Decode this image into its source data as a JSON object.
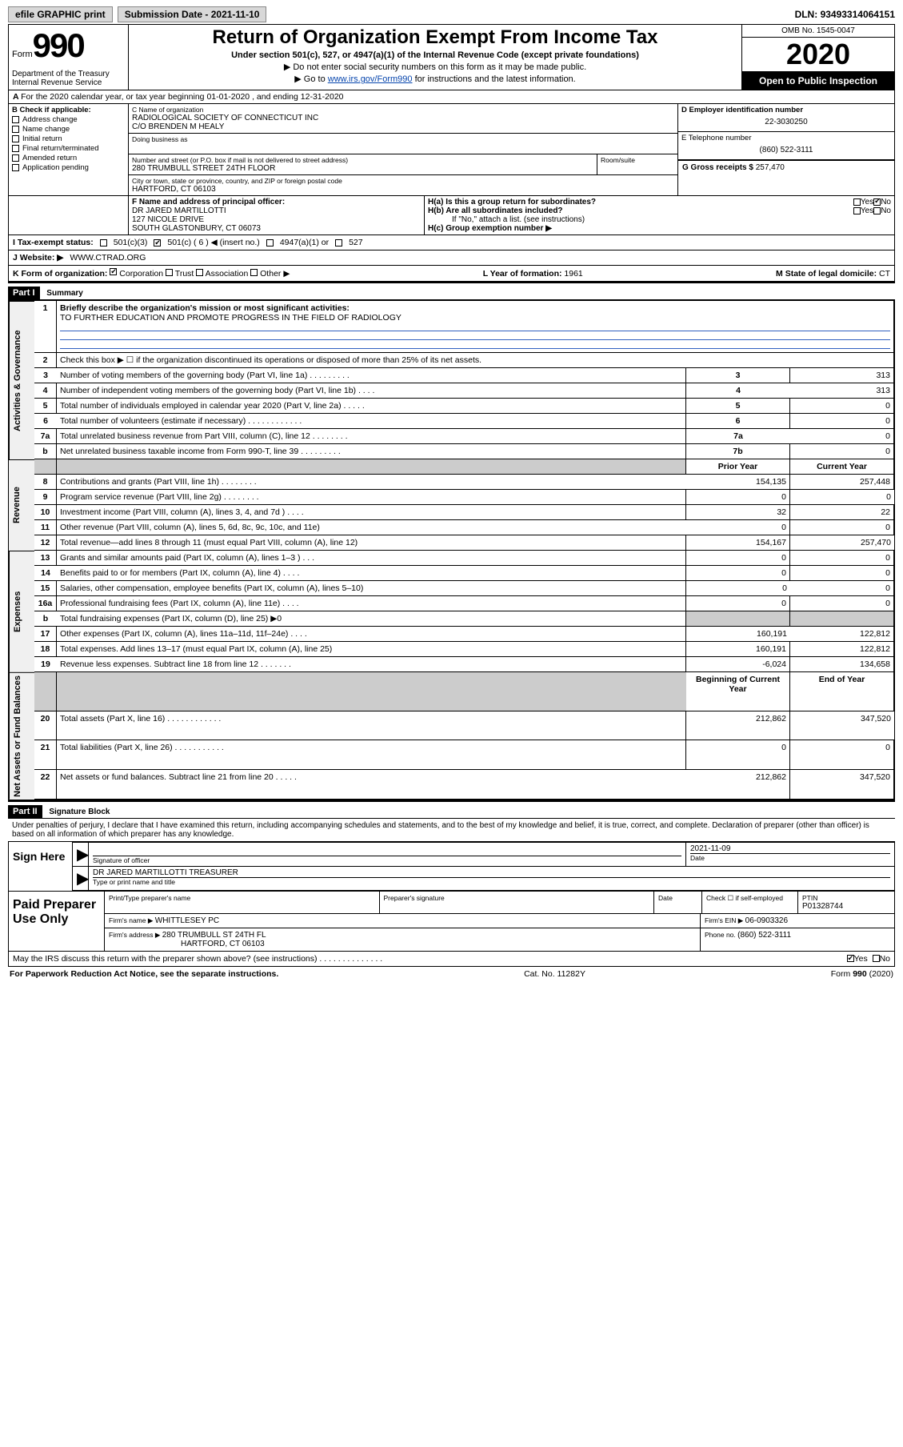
{
  "topbar": {
    "efile": "efile GRAPHIC print",
    "subdate_lbl": "Submission Date - ",
    "subdate": "2021-11-10",
    "dln_lbl": "DLN: ",
    "dln": "93493314064151"
  },
  "header": {
    "form_word": "Form",
    "form_num": "990",
    "dept": "Department of the Treasury\nInternal Revenue Service",
    "title": "Return of Organization Exempt From Income Tax",
    "sub": "Under section 501(c), 527, or 4947(a)(1) of the Internal Revenue Code (except private foundations)",
    "note1": "Do not enter social security numbers on this form as it may be made public.",
    "note2_a": "Go to ",
    "note2_link": "www.irs.gov/Form990",
    "note2_b": " for instructions and the latest information.",
    "omb": "OMB No. 1545-0047",
    "year": "2020",
    "open": "Open to Public Inspection"
  },
  "period": {
    "line": "For the 2020 calendar year, or tax year beginning 01-01-2020   , and ending 12-31-2020"
  },
  "B": {
    "hdr": "B Check if applicable:",
    "items": [
      "Address change",
      "Name change",
      "Initial return",
      "Final return/terminated",
      "Amended return",
      "Application pending"
    ]
  },
  "C": {
    "name_lbl": "C Name of organization",
    "name": "RADIOLOGICAL SOCIETY OF CONNECTICUT INC",
    "co": "C/O BRENDEN M HEALY",
    "dba_lbl": "Doing business as",
    "addr_lbl": "Number and street (or P.O. box if mail is not delivered to street address)",
    "room_lbl": "Room/suite",
    "addr": "280 TRUMBULL STREET 24TH FLOOR",
    "city_lbl": "City or town, state or province, country, and ZIP or foreign postal code",
    "city": "HARTFORD, CT  06103"
  },
  "D": {
    "lbl": "D Employer identification number",
    "val": "22-3030250"
  },
  "E": {
    "lbl": "E Telephone number",
    "val": "(860) 522-3111"
  },
  "G": {
    "lbl": "G Gross receipts $ ",
    "val": "257,470"
  },
  "F": {
    "lbl": "F  Name and address of principal officer:",
    "name": "DR JARED MARTILLOTTI",
    "addr1": "127 NICOLE DRIVE",
    "addr2": "SOUTH GLASTONBURY, CT  06073"
  },
  "H": {
    "a": "H(a)  Is this a group return for subordinates?",
    "b": "H(b)  Are all subordinates included?",
    "b_note": "If \"No,\" attach a list. (see instructions)",
    "c": "H(c)  Group exemption number ▶",
    "yes": "Yes",
    "no": "No"
  },
  "I": {
    "lbl": "I  Tax-exempt status:",
    "opts": [
      "501(c)(3)",
      "501(c) ( 6 ) ◀ (insert no.)",
      "4947(a)(1) or",
      "527"
    ]
  },
  "J": {
    "lbl": "J   Website: ▶",
    "val": "WWW.CTRAD.ORG"
  },
  "K": {
    "lbl": "K Form of organization:",
    "opts": [
      "Corporation",
      "Trust",
      "Association",
      "Other ▶"
    ],
    "L_lbl": "L Year of formation: ",
    "L_val": "1961",
    "M_lbl": "M State of legal domicile: ",
    "M_val": "CT"
  },
  "partI": {
    "tag": "Part I",
    "title": "Summary"
  },
  "summary": {
    "tabs": [
      "Activities & Governance",
      "Revenue",
      "Expenses",
      "Net Assets or Fund Balances"
    ],
    "q1_lbl": "1",
    "q1": "Briefly describe the organization's mission or most significant activities:",
    "q1_val": "TO FURTHER EDUCATION AND PROMOTE PROGRESS IN THE FIELD OF RADIOLOGY",
    "q2_lbl": "2",
    "q2": "Check this box ▶ ☐  if the organization discontinued its operations or disposed of more than 25% of its net assets.",
    "rows_ag": [
      {
        "n": "3",
        "d": "Number of voting members of the governing body (Part VI, line 1a)  .  .  .  .  .  .  .  .  .",
        "c": "3",
        "v": "313"
      },
      {
        "n": "4",
        "d": "Number of independent voting members of the governing body (Part VI, line 1b)  .  .  .  .",
        "c": "4",
        "v": "313"
      },
      {
        "n": "5",
        "d": "Total number of individuals employed in calendar year 2020 (Part V, line 2a)  .  .  .  .  .",
        "c": "5",
        "v": "0"
      },
      {
        "n": "6",
        "d": "Total number of volunteers (estimate if necessary)  .  .  .  .  .  .  .  .  .  .  .  .",
        "c": "6",
        "v": "0"
      },
      {
        "n": "7a",
        "d": "Total unrelated business revenue from Part VIII, column (C), line 12  .  .  .  .  .  .  .  .",
        "c": "7a",
        "v": "0"
      },
      {
        "n": "b",
        "d": "Net unrelated business taxable income from Form 990-T, line 39  .  .  .  .  .  .  .  .  .",
        "c": "7b",
        "v": "0"
      }
    ],
    "col_prior": "Prior Year",
    "col_curr": "Current Year",
    "rows_rev": [
      {
        "n": "8",
        "d": "Contributions and grants (Part VIII, line 1h)  .  .  .  .  .  .  .  .",
        "p": "154,135",
        "c": "257,448"
      },
      {
        "n": "9",
        "d": "Program service revenue (Part VIII, line 2g)  .  .  .  .  .  .  .  .",
        "p": "0",
        "c": "0"
      },
      {
        "n": "10",
        "d": "Investment income (Part VIII, column (A), lines 3, 4, and 7d )  .  .  .  .",
        "p": "32",
        "c": "22"
      },
      {
        "n": "11",
        "d": "Other revenue (Part VIII, column (A), lines 5, 6d, 8c, 9c, 10c, and 11e)",
        "p": "0",
        "c": "0"
      },
      {
        "n": "12",
        "d": "Total revenue—add lines 8 through 11 (must equal Part VIII, column (A), line 12)",
        "p": "154,167",
        "c": "257,470"
      }
    ],
    "rows_exp": [
      {
        "n": "13",
        "d": "Grants and similar amounts paid (Part IX, column (A), lines 1–3 )  .  .  .",
        "p": "0",
        "c": "0"
      },
      {
        "n": "14",
        "d": "Benefits paid to or for members (Part IX, column (A), line 4)  .  .  .  .",
        "p": "0",
        "c": "0"
      },
      {
        "n": "15",
        "d": "Salaries, other compensation, employee benefits (Part IX, column (A), lines 5–10)",
        "p": "0",
        "c": "0"
      },
      {
        "n": "16a",
        "d": "Professional fundraising fees (Part IX, column (A), line 11e)  .  .  .  .",
        "p": "0",
        "c": "0"
      },
      {
        "n": "b",
        "d": "Total fundraising expenses (Part IX, column (D), line 25) ▶0",
        "p": "",
        "c": "",
        "shade": true
      },
      {
        "n": "17",
        "d": "Other expenses (Part IX, column (A), lines 11a–11d, 11f–24e)  .  .  .  .",
        "p": "160,191",
        "c": "122,812"
      },
      {
        "n": "18",
        "d": "Total expenses. Add lines 13–17 (must equal Part IX, column (A), line 25)",
        "p": "160,191",
        "c": "122,812"
      },
      {
        "n": "19",
        "d": "Revenue less expenses. Subtract line 18 from line 12  .  .  .  .  .  .  .",
        "p": "-6,024",
        "c": "134,658"
      }
    ],
    "col_begin": "Beginning of Current Year",
    "col_end": "End of Year",
    "rows_net": [
      {
        "n": "20",
        "d": "Total assets (Part X, line 16)  .  .  .  .  .  .  .  .  .  .  .  .",
        "p": "212,862",
        "c": "347,520"
      },
      {
        "n": "21",
        "d": "Total liabilities (Part X, line 26)  .  .  .  .  .  .  .  .  .  .  .",
        "p": "0",
        "c": "0"
      },
      {
        "n": "22",
        "d": "Net assets or fund balances. Subtract line 21 from line 20  .  .  .  .  .",
        "p": "212,862",
        "c": "347,520"
      }
    ]
  },
  "partII": {
    "tag": "Part II",
    "title": "Signature Block"
  },
  "sig": {
    "perjury": "Under penalties of perjury, I declare that I have examined this return, including accompanying schedules and statements, and to the best of my knowledge and belief, it is true, correct, and complete. Declaration of preparer (other than officer) is based on all information of which preparer has any knowledge.",
    "sign_here": "Sign Here",
    "sig_officer": "Signature of officer",
    "date_lbl": "Date",
    "date_val": "2021-11-09",
    "officer": "DR JARED MARTILLOTTI  TREASURER",
    "type_name": "Type or print name and title",
    "paid": "Paid Preparer Use Only",
    "p_name_lbl": "Print/Type preparer's name",
    "p_sig_lbl": "Preparer's signature",
    "p_date_lbl": "Date",
    "p_check": "Check ☐ if self-employed",
    "ptin_lbl": "PTIN",
    "ptin": "P01328744",
    "firm_name_lbl": "Firm's name    ▶ ",
    "firm_name": "WHITTLESEY PC",
    "firm_ein_lbl": "Firm's EIN ▶ ",
    "firm_ein": "06-0903326",
    "firm_addr_lbl": "Firm's address ▶ ",
    "firm_addr1": "280 TRUMBULL ST 24TH FL",
    "firm_addr2": "HARTFORD, CT  06103",
    "phone_lbl": "Phone no. ",
    "phone": "(860) 522-3111",
    "discuss": "May the IRS discuss this return with the preparer shown above? (see instructions)  .  .  .  .  .  .  .  .  .  .  .  .  .  .",
    "yes": "Yes",
    "no": "No"
  },
  "foot": {
    "pra": "For Paperwork Reduction Act Notice, see the separate instructions.",
    "cat": "Cat. No. 11282Y",
    "form": "Form 990 (2020)"
  }
}
